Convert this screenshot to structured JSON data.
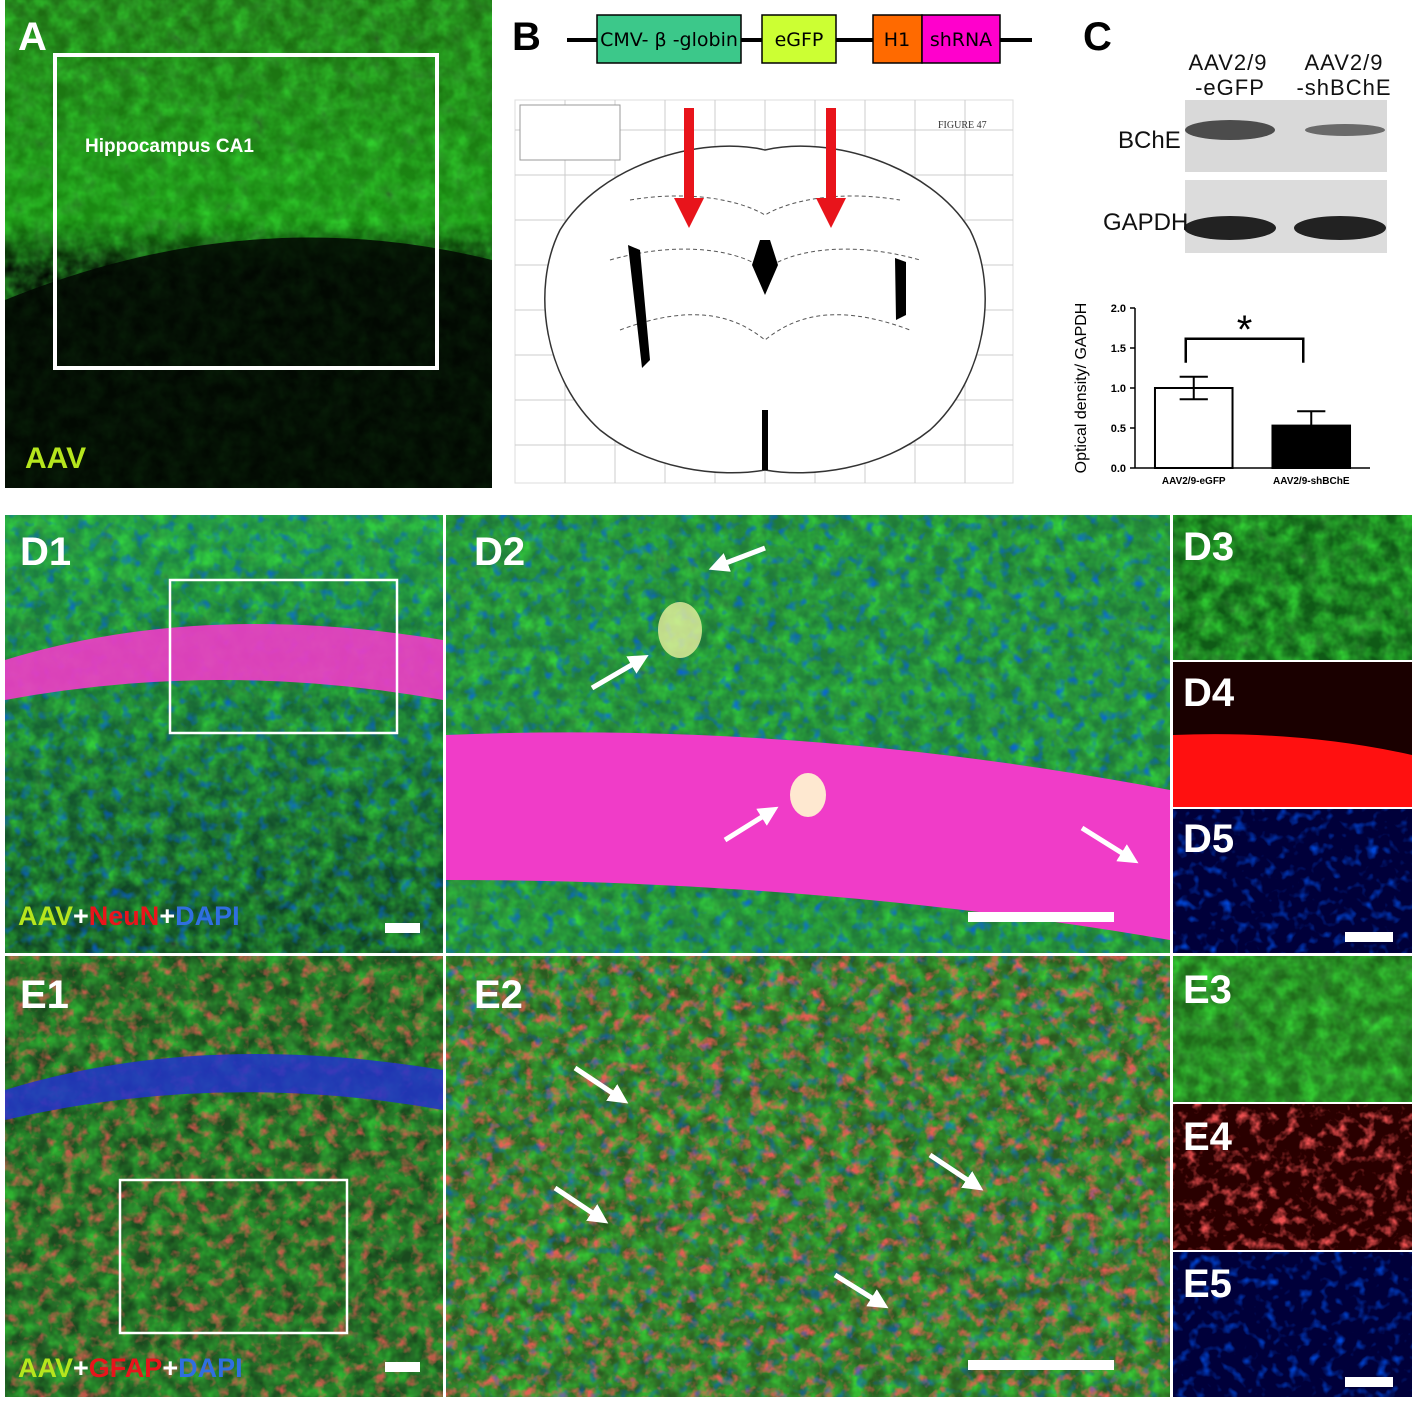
{
  "panels": {
    "a": {
      "label": "A",
      "region": "Hippocampus CA1",
      "marker": "AAV"
    },
    "b": {
      "label": "B",
      "construct": [
        "CMV- β -globin",
        "eGFP",
        "H1",
        "shRNA"
      ],
      "atlas_title": "FIGURE 47"
    },
    "c": {
      "label": "C",
      "lanes": [
        [
          "AAV2/9",
          "-eGFP"
        ],
        [
          "AAV2/9",
          "-shBChE"
        ]
      ],
      "blots": [
        "BChE",
        "GAPDH"
      ]
    },
    "d": {
      "labels": [
        "D1",
        "D2",
        "D3",
        "D4",
        "D5"
      ],
      "stain": [
        "AAV",
        "+",
        "NeuN",
        "+",
        "DAPI"
      ]
    },
    "e": {
      "labels": [
        "E1",
        "E2",
        "E3",
        "E4",
        "E5"
      ],
      "stain": [
        "AAV",
        "+",
        "GFAP",
        "+",
        "DAPI"
      ]
    }
  },
  "chart_data": {
    "type": "bar",
    "ylabel": "Optical density/ GAPDH",
    "categories": [
      "AAV2/9-eGFP",
      "AAV2/9-shBChE"
    ],
    "values": [
      1.0,
      0.53
    ],
    "errors": [
      0.14,
      0.18
    ],
    "colors": [
      "#ffffff",
      "#000000"
    ],
    "ylim": [
      0,
      2
    ],
    "yticks": [
      {
        "value": 0,
        "label": "0.0"
      },
      0.5,
      {
        "value": 1,
        "label": "1.0"
      },
      1.5,
      {
        "value": 2,
        "label": "2.0"
      }
    ],
    "annotation": "*"
  }
}
